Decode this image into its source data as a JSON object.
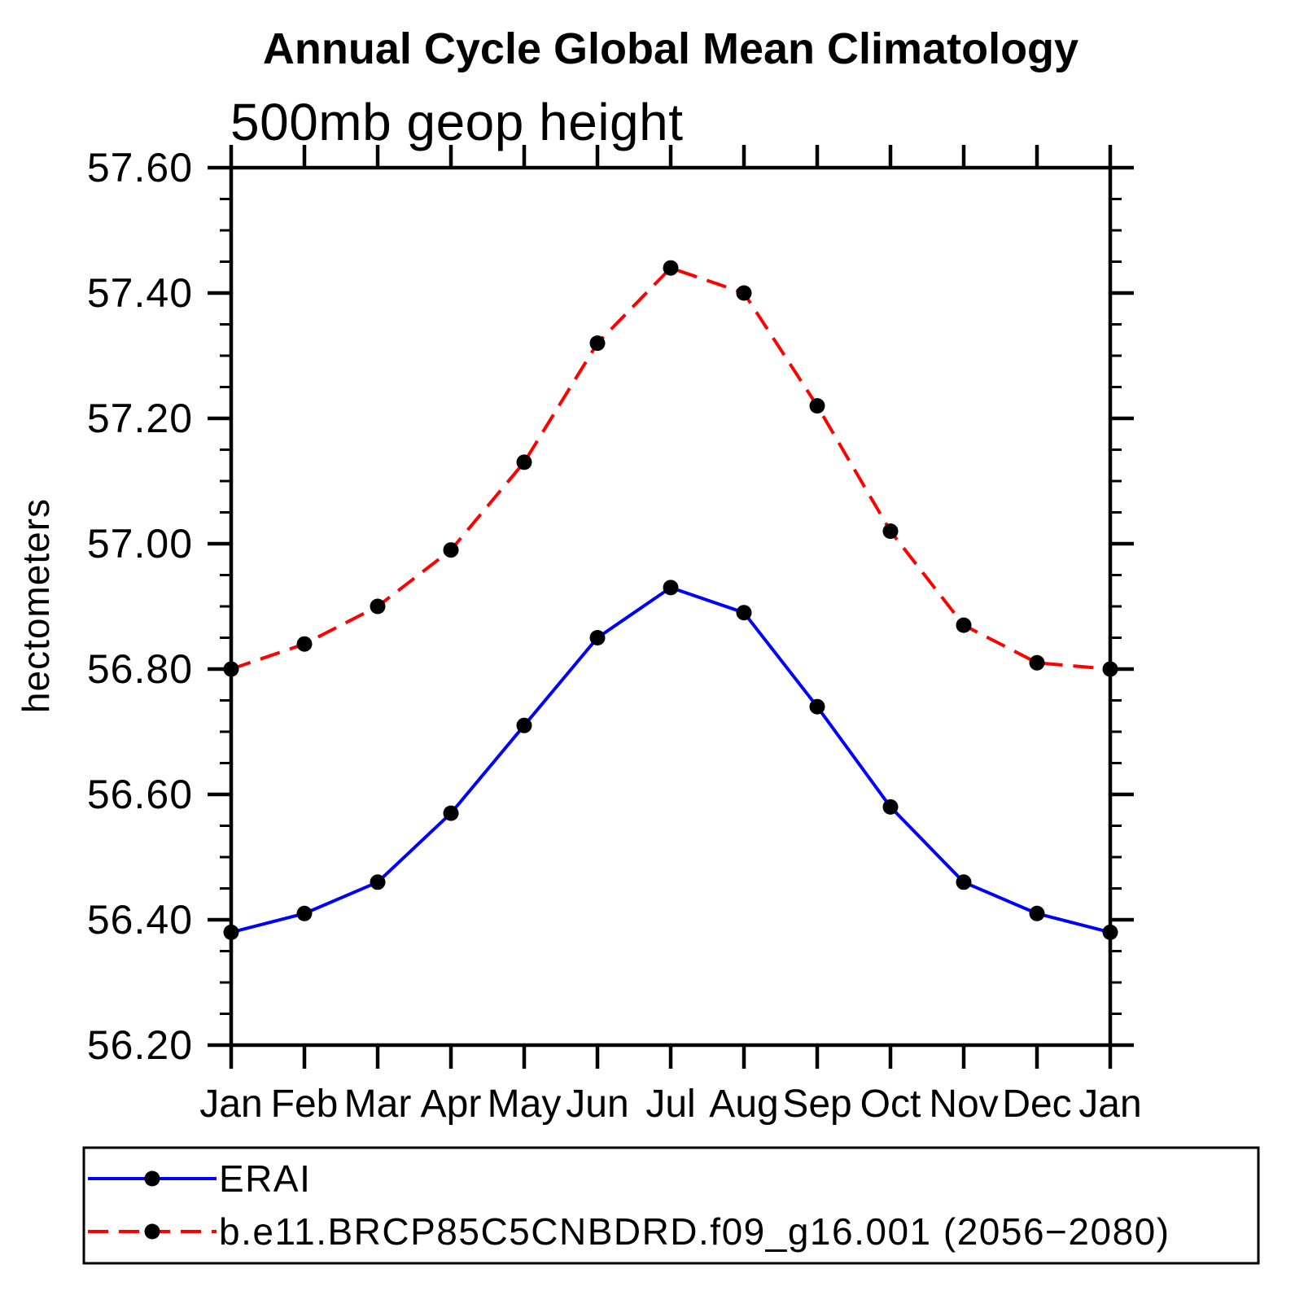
{
  "page": {
    "background": "#ffffff"
  },
  "header": {
    "title": "Annual Cycle Global Mean Climatology",
    "subtitle": "500mb geop height"
  },
  "axes": {
    "ylabel": "hectometers",
    "ytick_labels": [
      "56.20",
      "56.40",
      "56.60",
      "56.80",
      "57.00",
      "57.20",
      "57.40",
      "57.60"
    ],
    "xtick_labels": [
      "Jan",
      "Feb",
      "Mar",
      "Apr",
      "May",
      "Jun",
      "Jul",
      "Aug",
      "Sep",
      "Oct",
      "Nov",
      "Dec",
      "Jan"
    ]
  },
  "legend": {
    "items": [
      {
        "label": "ERAI",
        "color": "#0000ff",
        "line_style": "solid"
      },
      {
        "label": "b.e11.BRCP85C5CNBDRD.f09_g16.001 (2056−2080)",
        "color": "#ff0000",
        "line_style": "dashed"
      }
    ]
  },
  "chart_data": {
    "type": "line",
    "title": "Annual Cycle Global Mean Climatology",
    "subtitle": "500mb geop height",
    "xlabel": "",
    "ylabel": "hectometers",
    "categories": [
      "Jan",
      "Feb",
      "Mar",
      "Apr",
      "May",
      "Jun",
      "Jul",
      "Aug",
      "Sep",
      "Oct",
      "Nov",
      "Dec",
      "Jan"
    ],
    "ylim": [
      56.2,
      57.6
    ],
    "ytick_step_major": 0.2,
    "ytick_step_minor": 0.05,
    "grid": false,
    "legend_position": "bottom-left-box",
    "marker": "filled-circle",
    "marker_color": "#000000",
    "axis_color": "#000000",
    "series": [
      {
        "name": "ERAI",
        "color": "#0000ff",
        "line_style": "solid",
        "values": [
          56.38,
          56.41,
          56.46,
          56.57,
          56.71,
          56.85,
          56.93,
          56.89,
          56.74,
          56.58,
          56.46,
          56.41,
          56.38
        ]
      },
      {
        "name": "b.e11.BRCP85C5CNBDRD.f09_g16.001 (2056−2080)",
        "color": "#ff0000",
        "line_style": "dashed",
        "values": [
          56.8,
          56.84,
          56.9,
          56.99,
          57.13,
          57.32,
          57.44,
          57.4,
          57.22,
          57.02,
          56.87,
          56.81,
          56.8
        ]
      }
    ]
  }
}
